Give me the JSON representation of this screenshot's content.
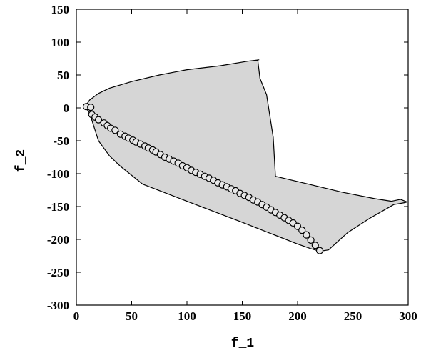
{
  "chart_data": {
    "type": "scatter",
    "xlabel": "f_1",
    "ylabel": "f_2",
    "xlim": [
      0,
      300
    ],
    "ylim": [
      -300,
      150
    ],
    "xticks": [
      "0",
      "50",
      "100",
      "150",
      "200",
      "250",
      "300"
    ],
    "yticks": [
      "150",
      "100",
      "50",
      "0",
      "-50",
      "-100",
      "-150",
      "-200",
      "-250",
      "-300"
    ],
    "grid": false,
    "colors": {
      "region_fill": "#d6d6d6",
      "region_stroke": "#000000",
      "marker_fill": "#e6e6e6",
      "marker_stroke": "#000000"
    },
    "feasible_region": [
      [
        8,
        2
      ],
      [
        12,
        12
      ],
      [
        20,
        22
      ],
      [
        30,
        30
      ],
      [
        50,
        40
      ],
      [
        75,
        50
      ],
      [
        100,
        58
      ],
      [
        130,
        64
      ],
      [
        155,
        71
      ],
      [
        165,
        73
      ],
      [
        164,
        73
      ],
      [
        166,
        45
      ],
      [
        172,
        20
      ],
      [
        178,
        -45
      ],
      [
        180,
        -104
      ],
      [
        210,
        -116
      ],
      [
        240,
        -128
      ],
      [
        270,
        -138
      ],
      [
        285,
        -142
      ],
      [
        293,
        -139
      ],
      [
        299,
        -143
      ],
      [
        297,
        -144
      ],
      [
        287,
        -147
      ],
      [
        265,
        -168
      ],
      [
        245,
        -190
      ],
      [
        228,
        -216
      ],
      [
        220,
        -218
      ],
      [
        212,
        -214
      ],
      [
        200,
        -207
      ],
      [
        150,
        -174
      ],
      [
        100,
        -142
      ],
      [
        60,
        -116
      ],
      [
        40,
        -89
      ],
      [
        30,
        -73
      ],
      [
        20,
        -50
      ],
      [
        12,
        -8
      ],
      [
        8,
        2
      ]
    ],
    "series": [
      {
        "type": "scatter",
        "marker": "circle",
        "points": [
          [
            9,
            2
          ],
          [
            13,
            1
          ],
          [
            14,
            -10
          ],
          [
            17,
            -14
          ],
          [
            20,
            -18
          ],
          [
            25,
            -23
          ],
          [
            28,
            -27
          ],
          [
            31,
            -31
          ],
          [
            35,
            -34
          ],
          [
            40,
            -40
          ],
          [
            44,
            -43
          ],
          [
            47,
            -46
          ],
          [
            51,
            -49
          ],
          [
            54,
            -52
          ],
          [
            58,
            -55
          ],
          [
            62,
            -58
          ],
          [
            65,
            -61
          ],
          [
            69,
            -64
          ],
          [
            72,
            -67
          ],
          [
            76,
            -71
          ],
          [
            80,
            -75
          ],
          [
            84,
            -78
          ],
          [
            88,
            -81
          ],
          [
            92,
            -84
          ],
          [
            96,
            -88
          ],
          [
            100,
            -91
          ],
          [
            104,
            -95
          ],
          [
            108,
            -98
          ],
          [
            112,
            -101
          ],
          [
            116,
            -104
          ],
          [
            120,
            -107
          ],
          [
            124,
            -110
          ],
          [
            128,
            -114
          ],
          [
            132,
            -117
          ],
          [
            136,
            -120
          ],
          [
            140,
            -123
          ],
          [
            144,
            -126
          ],
          [
            148,
            -130
          ],
          [
            152,
            -133
          ],
          [
            156,
            -136
          ],
          [
            160,
            -140
          ],
          [
            164,
            -143
          ],
          [
            168,
            -147
          ],
          [
            172,
            -151
          ],
          [
            176,
            -155
          ],
          [
            180,
            -159
          ],
          [
            184,
            -163
          ],
          [
            188,
            -167
          ],
          [
            192,
            -171
          ],
          [
            196,
            -175
          ],
          [
            200,
            -180
          ],
          [
            204,
            -186
          ],
          [
            208,
            -193
          ],
          [
            212,
            -201
          ],
          [
            216,
            -209
          ],
          [
            220,
            -217
          ]
        ]
      }
    ]
  }
}
